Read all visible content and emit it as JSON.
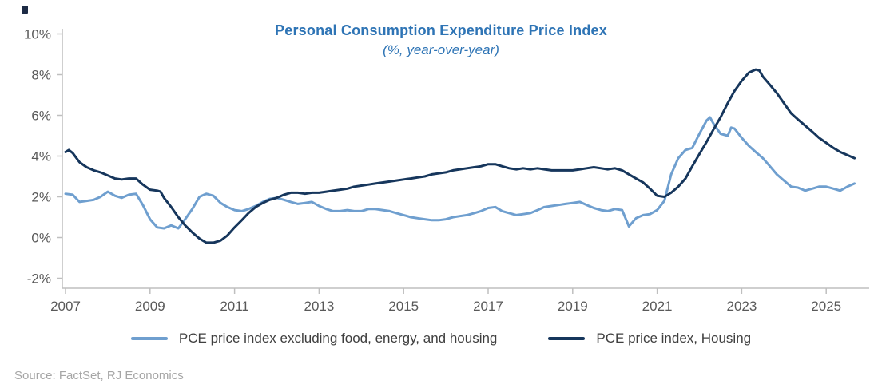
{
  "title": "Personal Consumption Expenditure Price Index",
  "subtitle": "(%, year-over-year)",
  "source": "Source: FactSet, RJ Economics",
  "colors": {
    "title": "#2E74B5",
    "axis_text": "#595959",
    "axis_line": "#BFBFBF",
    "series_core": "#6F9FCF",
    "series_housing": "#16365C",
    "legend_text": "#3F3F3F",
    "source_text": "#A6A6A6",
    "corner_mark": "#1D2B45"
  },
  "legend": [
    {
      "label": "PCE price index excluding food, energy, and housing",
      "color_key": "series_core"
    },
    {
      "label": "PCE price index, Housing",
      "color_key": "series_housing"
    }
  ],
  "chart_data": {
    "type": "line",
    "title": "Personal Consumption Expenditure Price Index",
    "subtitle": "(%, year-over-year)",
    "x_axis": {
      "min": 2006.9,
      "max": 2025.9,
      "ticks": [
        2007,
        2009,
        2011,
        2013,
        2015,
        2017,
        2019,
        2021,
        2023,
        2025
      ]
    },
    "y_axis": {
      "min": -2,
      "max": 10,
      "ticks": [
        {
          "value": 10,
          "label": "10%"
        },
        {
          "value": 8,
          "label": "8%"
        },
        {
          "value": 6,
          "label": "6%"
        },
        {
          "value": 4,
          "label": "4%"
        },
        {
          "value": 2,
          "label": "2%"
        },
        {
          "value": 0,
          "label": "0%"
        },
        {
          "value": -2,
          "label": "-2%"
        }
      ]
    },
    "grid": false,
    "legend_position": "bottom",
    "series": [
      {
        "name": "PCE price index excluding food, energy, and housing",
        "color": "#6F9FCF",
        "points": [
          [
            2007.0,
            2.15
          ],
          [
            2007.17,
            2.1
          ],
          [
            2007.33,
            1.75
          ],
          [
            2007.5,
            1.8
          ],
          [
            2007.67,
            1.85
          ],
          [
            2007.83,
            2.0
          ],
          [
            2008.0,
            2.25
          ],
          [
            2008.17,
            2.05
          ],
          [
            2008.33,
            1.95
          ],
          [
            2008.5,
            2.1
          ],
          [
            2008.67,
            2.15
          ],
          [
            2008.83,
            1.6
          ],
          [
            2009.0,
            0.9
          ],
          [
            2009.17,
            0.5
          ],
          [
            2009.33,
            0.45
          ],
          [
            2009.5,
            0.6
          ],
          [
            2009.67,
            0.45
          ],
          [
            2009.83,
            0.9
          ],
          [
            2010.0,
            1.4
          ],
          [
            2010.17,
            2.0
          ],
          [
            2010.33,
            2.15
          ],
          [
            2010.5,
            2.05
          ],
          [
            2010.67,
            1.7
          ],
          [
            2010.83,
            1.5
          ],
          [
            2011.0,
            1.35
          ],
          [
            2011.17,
            1.3
          ],
          [
            2011.33,
            1.4
          ],
          [
            2011.5,
            1.55
          ],
          [
            2011.67,
            1.75
          ],
          [
            2011.83,
            1.9
          ],
          [
            2012.0,
            1.95
          ],
          [
            2012.17,
            1.85
          ],
          [
            2012.33,
            1.75
          ],
          [
            2012.5,
            1.65
          ],
          [
            2012.67,
            1.7
          ],
          [
            2012.83,
            1.75
          ],
          [
            2013.0,
            1.55
          ],
          [
            2013.17,
            1.4
          ],
          [
            2013.33,
            1.3
          ],
          [
            2013.5,
            1.3
          ],
          [
            2013.67,
            1.35
          ],
          [
            2013.83,
            1.3
          ],
          [
            2014.0,
            1.3
          ],
          [
            2014.17,
            1.4
          ],
          [
            2014.33,
            1.4
          ],
          [
            2014.5,
            1.35
          ],
          [
            2014.67,
            1.3
          ],
          [
            2014.83,
            1.2
          ],
          [
            2015.0,
            1.1
          ],
          [
            2015.17,
            1.0
          ],
          [
            2015.33,
            0.95
          ],
          [
            2015.5,
            0.9
          ],
          [
            2015.67,
            0.85
          ],
          [
            2015.83,
            0.85
          ],
          [
            2016.0,
            0.9
          ],
          [
            2016.17,
            1.0
          ],
          [
            2016.33,
            1.05
          ],
          [
            2016.5,
            1.1
          ],
          [
            2016.67,
            1.2
          ],
          [
            2016.83,
            1.3
          ],
          [
            2017.0,
            1.45
          ],
          [
            2017.17,
            1.5
          ],
          [
            2017.33,
            1.3
          ],
          [
            2017.5,
            1.2
          ],
          [
            2017.67,
            1.1
          ],
          [
            2017.83,
            1.15
          ],
          [
            2018.0,
            1.2
          ],
          [
            2018.17,
            1.35
          ],
          [
            2018.33,
            1.5
          ],
          [
            2018.5,
            1.55
          ],
          [
            2018.67,
            1.6
          ],
          [
            2018.83,
            1.65
          ],
          [
            2019.0,
            1.7
          ],
          [
            2019.17,
            1.75
          ],
          [
            2019.33,
            1.6
          ],
          [
            2019.5,
            1.45
          ],
          [
            2019.67,
            1.35
          ],
          [
            2019.83,
            1.3
          ],
          [
            2020.0,
            1.4
          ],
          [
            2020.17,
            1.35
          ],
          [
            2020.33,
            0.55
          ],
          [
            2020.5,
            0.95
          ],
          [
            2020.67,
            1.1
          ],
          [
            2020.83,
            1.15
          ],
          [
            2021.0,
            1.35
          ],
          [
            2021.17,
            1.8
          ],
          [
            2021.33,
            3.1
          ],
          [
            2021.5,
            3.9
          ],
          [
            2021.67,
            4.3
          ],
          [
            2021.83,
            4.4
          ],
          [
            2022.0,
            5.1
          ],
          [
            2022.17,
            5.75
          ],
          [
            2022.25,
            5.9
          ],
          [
            2022.33,
            5.6
          ],
          [
            2022.5,
            5.1
          ],
          [
            2022.67,
            5.0
          ],
          [
            2022.75,
            5.4
          ],
          [
            2022.83,
            5.35
          ],
          [
            2023.0,
            4.9
          ],
          [
            2023.17,
            4.5
          ],
          [
            2023.33,
            4.2
          ],
          [
            2023.5,
            3.9
          ],
          [
            2023.67,
            3.5
          ],
          [
            2023.83,
            3.1
          ],
          [
            2024.0,
            2.8
          ],
          [
            2024.17,
            2.5
          ],
          [
            2024.33,
            2.45
          ],
          [
            2024.5,
            2.3
          ],
          [
            2024.67,
            2.4
          ],
          [
            2024.83,
            2.5
          ],
          [
            2025.0,
            2.5
          ],
          [
            2025.17,
            2.4
          ],
          [
            2025.33,
            2.3
          ],
          [
            2025.5,
            2.5
          ],
          [
            2025.67,
            2.65
          ]
        ]
      },
      {
        "name": "PCE price index, Housing",
        "color": "#16365C",
        "points": [
          [
            2007.0,
            4.2
          ],
          [
            2007.08,
            4.3
          ],
          [
            2007.17,
            4.15
          ],
          [
            2007.33,
            3.7
          ],
          [
            2007.5,
            3.45
          ],
          [
            2007.67,
            3.3
          ],
          [
            2007.83,
            3.2
          ],
          [
            2008.0,
            3.05
          ],
          [
            2008.17,
            2.9
          ],
          [
            2008.33,
            2.85
          ],
          [
            2008.5,
            2.9
          ],
          [
            2008.67,
            2.9
          ],
          [
            2008.83,
            2.6
          ],
          [
            2009.0,
            2.35
          ],
          [
            2009.17,
            2.3
          ],
          [
            2009.25,
            2.25
          ],
          [
            2009.33,
            1.95
          ],
          [
            2009.5,
            1.5
          ],
          [
            2009.67,
            1.0
          ],
          [
            2009.83,
            0.6
          ],
          [
            2010.0,
            0.25
          ],
          [
            2010.17,
            -0.05
          ],
          [
            2010.33,
            -0.25
          ],
          [
            2010.5,
            -0.25
          ],
          [
            2010.67,
            -0.15
          ],
          [
            2010.83,
            0.1
          ],
          [
            2011.0,
            0.5
          ],
          [
            2011.17,
            0.85
          ],
          [
            2011.33,
            1.2
          ],
          [
            2011.5,
            1.5
          ],
          [
            2011.67,
            1.7
          ],
          [
            2011.83,
            1.85
          ],
          [
            2012.0,
            1.95
          ],
          [
            2012.17,
            2.1
          ],
          [
            2012.33,
            2.2
          ],
          [
            2012.5,
            2.2
          ],
          [
            2012.67,
            2.15
          ],
          [
            2012.83,
            2.2
          ],
          [
            2013.0,
            2.2
          ],
          [
            2013.17,
            2.25
          ],
          [
            2013.33,
            2.3
          ],
          [
            2013.5,
            2.35
          ],
          [
            2013.67,
            2.4
          ],
          [
            2013.83,
            2.5
          ],
          [
            2014.0,
            2.55
          ],
          [
            2014.17,
            2.6
          ],
          [
            2014.33,
            2.65
          ],
          [
            2014.5,
            2.7
          ],
          [
            2014.67,
            2.75
          ],
          [
            2014.83,
            2.8
          ],
          [
            2015.0,
            2.85
          ],
          [
            2015.17,
            2.9
          ],
          [
            2015.33,
            2.95
          ],
          [
            2015.5,
            3.0
          ],
          [
            2015.67,
            3.1
          ],
          [
            2015.83,
            3.15
          ],
          [
            2016.0,
            3.2
          ],
          [
            2016.17,
            3.3
          ],
          [
            2016.33,
            3.35
          ],
          [
            2016.5,
            3.4
          ],
          [
            2016.67,
            3.45
          ],
          [
            2016.83,
            3.5
          ],
          [
            2017.0,
            3.6
          ],
          [
            2017.17,
            3.6
          ],
          [
            2017.33,
            3.5
          ],
          [
            2017.5,
            3.4
          ],
          [
            2017.67,
            3.35
          ],
          [
            2017.83,
            3.4
          ],
          [
            2018.0,
            3.35
          ],
          [
            2018.17,
            3.4
          ],
          [
            2018.33,
            3.35
          ],
          [
            2018.5,
            3.3
          ],
          [
            2018.67,
            3.3
          ],
          [
            2018.83,
            3.3
          ],
          [
            2019.0,
            3.3
          ],
          [
            2019.17,
            3.35
          ],
          [
            2019.33,
            3.4
          ],
          [
            2019.5,
            3.45
          ],
          [
            2019.67,
            3.4
          ],
          [
            2019.83,
            3.35
          ],
          [
            2020.0,
            3.4
          ],
          [
            2020.17,
            3.3
          ],
          [
            2020.33,
            3.1
          ],
          [
            2020.5,
            2.9
          ],
          [
            2020.67,
            2.7
          ],
          [
            2020.83,
            2.4
          ],
          [
            2021.0,
            2.05
          ],
          [
            2021.17,
            2.0
          ],
          [
            2021.33,
            2.2
          ],
          [
            2021.5,
            2.5
          ],
          [
            2021.67,
            2.9
          ],
          [
            2021.83,
            3.5
          ],
          [
            2022.0,
            4.1
          ],
          [
            2022.17,
            4.7
          ],
          [
            2022.33,
            5.3
          ],
          [
            2022.5,
            5.9
          ],
          [
            2022.67,
            6.6
          ],
          [
            2022.83,
            7.2
          ],
          [
            2023.0,
            7.7
          ],
          [
            2023.17,
            8.1
          ],
          [
            2023.33,
            8.25
          ],
          [
            2023.42,
            8.2
          ],
          [
            2023.5,
            7.9
          ],
          [
            2023.67,
            7.5
          ],
          [
            2023.83,
            7.1
          ],
          [
            2024.0,
            6.6
          ],
          [
            2024.17,
            6.1
          ],
          [
            2024.33,
            5.8
          ],
          [
            2024.5,
            5.5
          ],
          [
            2024.67,
            5.2
          ],
          [
            2024.83,
            4.9
          ],
          [
            2025.0,
            4.65
          ],
          [
            2025.17,
            4.4
          ],
          [
            2025.33,
            4.2
          ],
          [
            2025.5,
            4.05
          ],
          [
            2025.67,
            3.9
          ]
        ]
      }
    ]
  }
}
